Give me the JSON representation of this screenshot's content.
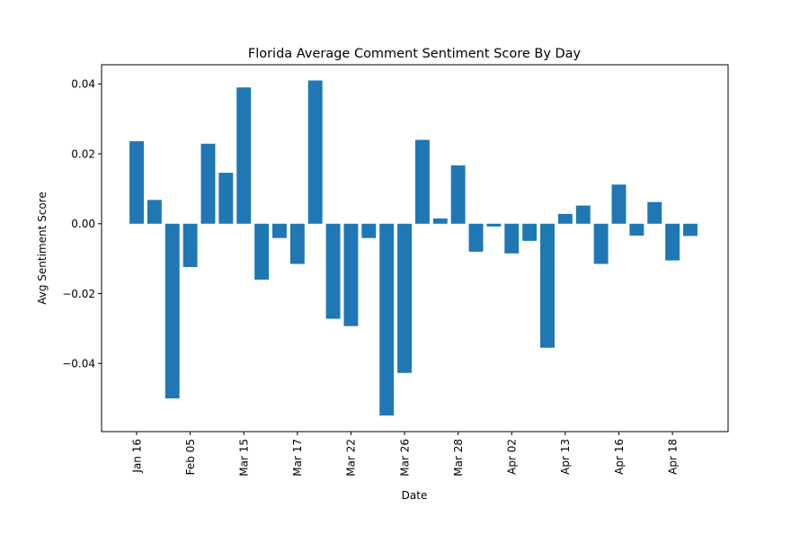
{
  "chart_data": {
    "type": "bar",
    "title": "Florida Average Comment Sentiment Score By Day",
    "xlabel": "Date",
    "ylabel": "Avg Sentiment Score",
    "bar_color": "#1f77b4",
    "ylim": [
      -0.0595,
      0.0455
    ],
    "yticks": [
      {
        "value": 0.04,
        "label": "0.04"
      },
      {
        "value": 0.02,
        "label": "0.02"
      },
      {
        "value": 0.0,
        "label": "0.00"
      },
      {
        "value": -0.02,
        "label": "−0.02"
      },
      {
        "value": -0.04,
        "label": "−0.04"
      }
    ],
    "xticks": [
      {
        "index": 0,
        "label": "Jan 16"
      },
      {
        "index": 3,
        "label": "Feb 05"
      },
      {
        "index": 6,
        "label": "Mar 15"
      },
      {
        "index": 9,
        "label": "Mar 17"
      },
      {
        "index": 12,
        "label": "Mar 22"
      },
      {
        "index": 15,
        "label": "Mar 26"
      },
      {
        "index": 18,
        "label": "Mar 28"
      },
      {
        "index": 21,
        "label": "Apr 02"
      },
      {
        "index": 24,
        "label": "Apr 13"
      },
      {
        "index": 27,
        "label": "Apr 16"
      },
      {
        "index": 30,
        "label": "Apr 18"
      }
    ],
    "values": [
      0.0236,
      0.0068,
      -0.05,
      -0.0124,
      0.0229,
      0.0146,
      0.039,
      -0.016,
      -0.0041,
      -0.0115,
      0.041,
      -0.0272,
      -0.0293,
      -0.0041,
      -0.0549,
      -0.0427,
      0.024,
      0.0015,
      0.0167,
      -0.008,
      -0.0008,
      -0.0085,
      -0.0049,
      -0.0355,
      0.0028,
      0.0052,
      -0.0115,
      0.0112,
      -0.0034,
      0.0062,
      -0.0105,
      -0.0035
    ]
  }
}
